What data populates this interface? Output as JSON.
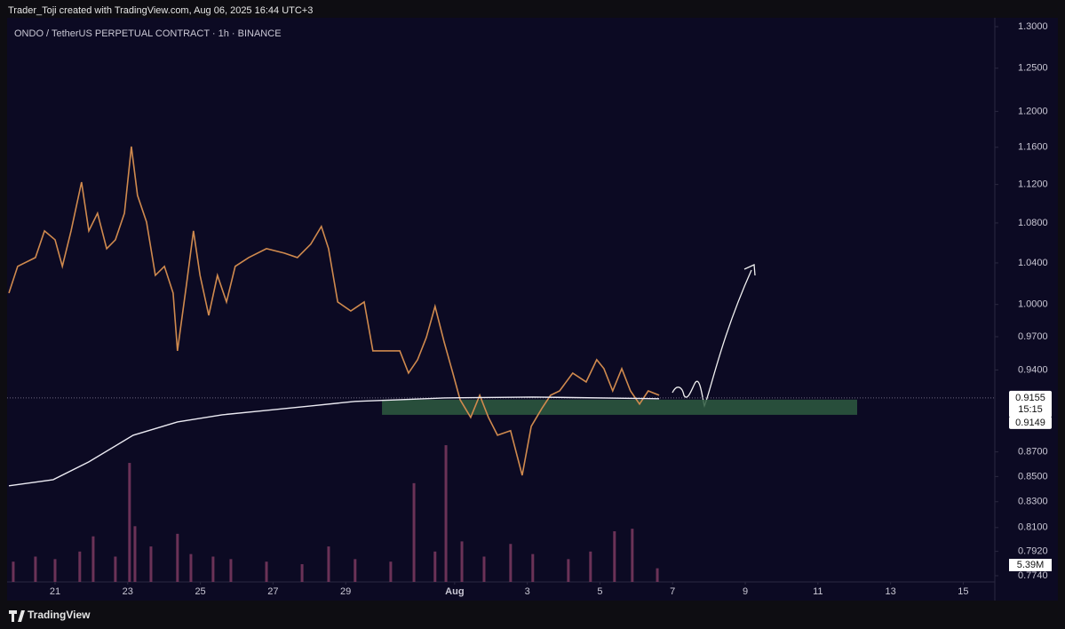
{
  "header": {
    "credit": "Trader_Toji created with TradingView.com, Aug 06, 2025 16:44 UTC+3",
    "logo": "TradingView"
  },
  "chart_data": {
    "type": "line",
    "title": "ONDO / TetherUS PERPETUAL CONTRACT · 1h · BINANCE",
    "log_scale": true,
    "xlim": [
      19.68,
      46.87
    ],
    "ylim": [
      0.774,
      1.3
    ],
    "yticks": [
      {
        "value": 1.3,
        "label": "1.3000"
      },
      {
        "value": 1.25,
        "label": "1.2500"
      },
      {
        "value": 1.2,
        "label": "1.2000"
      },
      {
        "value": 1.16,
        "label": "1.1600"
      },
      {
        "value": 1.12,
        "label": "1.1200"
      },
      {
        "value": 1.08,
        "label": "1.0800"
      },
      {
        "value": 1.04,
        "label": "1.0400"
      },
      {
        "value": 1.0,
        "label": "1.0000"
      },
      {
        "value": 0.97,
        "label": "0.9700"
      },
      {
        "value": 0.94,
        "label": "0.9400"
      },
      {
        "value": 0.87,
        "label": "0.8700"
      },
      {
        "value": 0.85,
        "label": "0.8500"
      },
      {
        "value": 0.83,
        "label": "0.8300"
      },
      {
        "value": 0.81,
        "label": "0.8100"
      },
      {
        "value": 0.792,
        "label": "0.7920"
      },
      {
        "value": 0.774,
        "label": "0.7740"
      }
    ],
    "xticks": [
      21,
      23,
      25,
      27,
      29,
      {
        "value": 32,
        "label": "Aug"
      },
      {
        "value": 34,
        "label": "3"
      },
      {
        "value": 36,
        "label": "5"
      },
      {
        "value": 38,
        "label": "7"
      },
      {
        "value": 40,
        "label": "9"
      },
      {
        "value": 42,
        "label": "11"
      },
      {
        "value": 44,
        "label": "13"
      },
      {
        "value": 46,
        "label": "15"
      }
    ],
    "series": [
      {
        "name": "ONDOUSDT.P",
        "color": "#d08a4e",
        "x": [
          19.73,
          19.97,
          20.46,
          20.71,
          21,
          21.2,
          21.44,
          21.73,
          21.93,
          22.17,
          22.42,
          22.66,
          22.91,
          23.1,
          23.27,
          23.52,
          23.76,
          24.01,
          24.25,
          24.37,
          24.62,
          24.81,
          24.99,
          25.23,
          25.47,
          25.72,
          25.96,
          26.33,
          26.82,
          27.31,
          27.67,
          28.04,
          28.33,
          28.53,
          28.78,
          29.14,
          29.51,
          29.75,
          30.12,
          30.49,
          30.73,
          30.98,
          31.22,
          31.46,
          31.71,
          31.95,
          32.15,
          32.44,
          32.69,
          32.93,
          33.18,
          33.54,
          33.86,
          34.11,
          34.4,
          34.64,
          34.89,
          35.25,
          35.62,
          35.91,
          36.11,
          36.35,
          36.6,
          36.84,
          37.09,
          37.33,
          37.63
        ],
        "values": [
          1.0108,
          1.0366,
          1.0453,
          1.0719,
          1.063,
          1.0366,
          1.0719,
          1.1225,
          1.0719,
          1.09,
          1.0541,
          1.063,
          1.09,
          1.1608,
          1.1085,
          1.0809,
          1.0279,
          1.0366,
          1.0108,
          0.9571,
          1.0193,
          1.0719,
          1.0279,
          0.9898,
          1.0279,
          1.0023,
          1.0366,
          1.0453,
          1.0541,
          1.0497,
          1.0453,
          1.0586,
          1.0764,
          1.0541,
          1.0023,
          0.9939,
          1.0023,
          0.9571,
          0.9571,
          0.9571,
          0.9373,
          0.9491,
          0.9693,
          0.9981,
          0.9652,
          0.9373,
          0.914,
          0.8988,
          0.9178,
          0.8988,
          0.8838,
          0.8876,
          0.851,
          0.8913,
          0.9064,
          0.9178,
          0.9216,
          0.9373,
          0.9294,
          0.9491,
          0.9412,
          0.9216,
          0.9412,
          0.9216,
          0.9102,
          0.9216,
          0.9178
        ]
      },
      {
        "name": "MA",
        "color": "#ecebf3",
        "x": [
          19.73,
          20.95,
          21.93,
          23.15,
          24.37,
          25.6,
          26.82,
          28.04,
          29.26,
          30.49,
          31.71,
          34.15,
          37.63
        ],
        "values": [
          0.8426,
          0.8475,
          0.8618,
          0.8838,
          0.895,
          0.901,
          0.9048,
          0.9086,
          0.9125,
          0.914,
          0.9155,
          0.9163,
          0.9148
        ]
      }
    ],
    "zone": {
      "x": [
        30,
        43.08
      ],
      "y": [
        0.901,
        0.914
      ],
      "color": "#2e5a3f"
    },
    "volume": {
      "color": "#7c3a60",
      "ylim": [
        0,
        60
      ],
      "x": [
        19.85,
        20.46,
        21,
        21.68,
        22.05,
        22.66,
        23.05,
        23.2,
        23.64,
        24.37,
        24.74,
        25.35,
        25.84,
        26.82,
        27.8,
        28.53,
        29.26,
        30.24,
        30.88,
        31.46,
        31.76,
        32.2,
        32.81,
        33.54,
        34.15,
        35.13,
        35.74,
        36.4,
        36.89,
        37.58
      ],
      "values": [
        8,
        10,
        9,
        12,
        18,
        10,
        47,
        22,
        14,
        19,
        11,
        10,
        9,
        8,
        7,
        14,
        9,
        8,
        39,
        12,
        54,
        16,
        10,
        15,
        11,
        9,
        12,
        20,
        21,
        5.39
      ],
      "value_labels": [
        null,
        null,
        null,
        null,
        null,
        null,
        null,
        null,
        null,
        null,
        null,
        null,
        null,
        null,
        null,
        null,
        null,
        null,
        null,
        null,
        null,
        null,
        null,
        null,
        null,
        null,
        null,
        null,
        null,
        "5.39M"
      ]
    },
    "last_price": 0.9155,
    "countdown": "15:15",
    "ma_value": 0.9149
  }
}
